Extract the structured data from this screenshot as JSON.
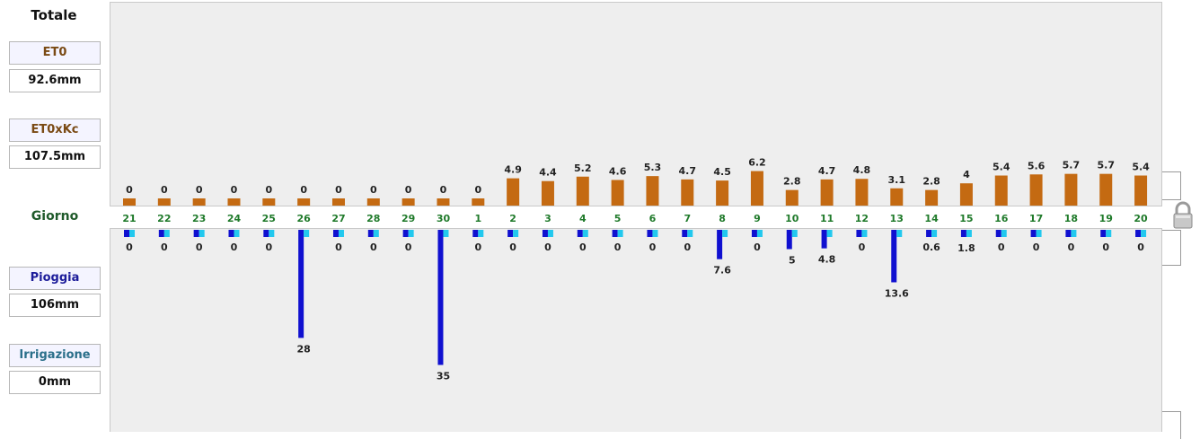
{
  "sidebar": {
    "totale": "Totale",
    "et0_label": "ET0",
    "et0_value": "92.6mm",
    "et0kc_label": "ET0xKc",
    "et0kc_value": "107.5mm",
    "giorno_label": "Giorno",
    "pioggia_label": "Pioggia",
    "pioggia_value": "106mm",
    "irrigazione_label": "Irrigazione",
    "irrigazione_value": "0mm"
  },
  "colors": {
    "et0": "#c46a12",
    "et0_label": "#7a4a14",
    "rain": "#1010d0",
    "rain_label": "#1c1c9a",
    "irrigation": "#22c8ee",
    "irrigation_label": "#2a6f8a",
    "day": "#1f7a2a"
  },
  "chart_data": {
    "type": "bar",
    "categories": [
      "21",
      "22",
      "23",
      "24",
      "25",
      "26",
      "27",
      "28",
      "29",
      "30",
      "1",
      "2",
      "3",
      "4",
      "5",
      "6",
      "7",
      "8",
      "9",
      "10",
      "11",
      "12",
      "13",
      "14",
      "15",
      "16",
      "17",
      "18",
      "19",
      "20"
    ],
    "series": [
      {
        "name": "ET0",
        "values": [
          0,
          0,
          0,
          0,
          0,
          0,
          0,
          0,
          0,
          0,
          0,
          4.9,
          4.4,
          5.2,
          4.6,
          5.3,
          4.7,
          4.5,
          6.2,
          2.8,
          4.7,
          4.8,
          3.1,
          2.8,
          4,
          5.4,
          5.6,
          5.7,
          5.7,
          5.4
        ]
      },
      {
        "name": "Pioggia",
        "values": [
          0,
          0,
          0,
          0,
          0,
          28,
          0,
          0,
          0,
          35,
          0,
          0,
          0,
          0,
          0,
          0,
          0,
          7.6,
          0,
          5,
          4.8,
          0,
          13.6,
          0.6,
          1.8,
          0,
          0,
          0,
          0,
          0
        ]
      },
      {
        "name": "Irrigazione",
        "values": [
          0,
          0,
          0,
          0,
          0,
          0,
          0,
          0,
          0,
          0,
          0,
          0,
          0,
          0,
          0,
          0,
          0,
          0,
          0,
          0,
          0,
          0,
          0,
          0,
          0,
          0,
          0,
          0,
          0,
          0
        ]
      }
    ]
  }
}
